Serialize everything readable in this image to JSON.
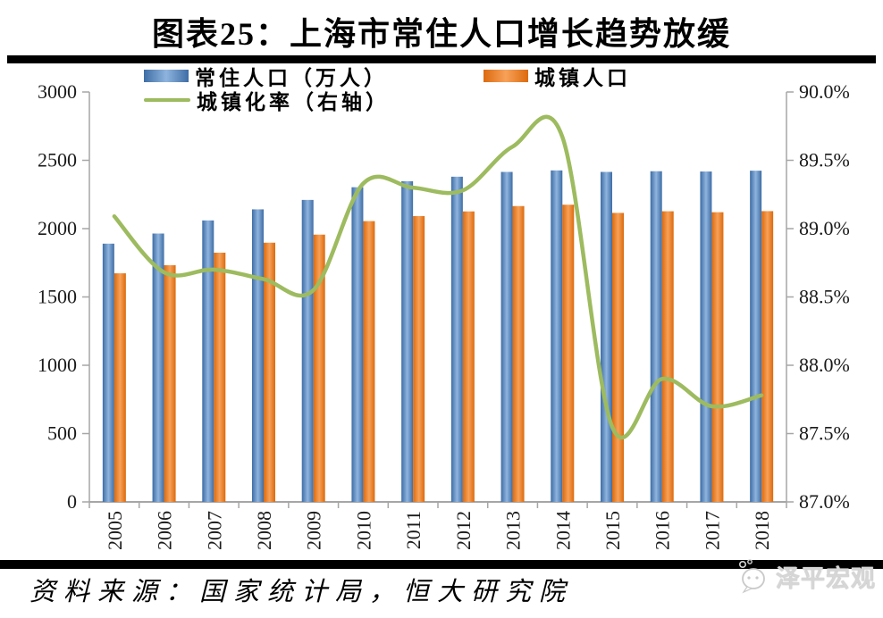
{
  "title": "图表25：上海市常住人口增长趋势放缓",
  "source": "资料来源：国家统计局，恒大研究院",
  "watermark": "泽平宏观",
  "legend": [
    {
      "label": "常住人口（万人）",
      "type": "bar",
      "color_key": "blue"
    },
    {
      "label": "城镇人口",
      "type": "bar",
      "color_key": "orange"
    },
    {
      "label": "城镇化率（右轴）",
      "type": "line",
      "color_key": "green"
    }
  ],
  "colors": {
    "bar_blue_edge": "#3E6DA5",
    "bar_blue_center": "#8FB4DE",
    "bar_orange_edge": "#DC6A0D",
    "bar_orange_center": "#F7A159",
    "line_green": "#9DBB5F",
    "axis_gray": "#A6A6A6",
    "text_black": "#1a1a1a",
    "divider_black": "#000000",
    "watermark_gray": "#d6d6d6"
  },
  "chart_data": {
    "type": "bar+line combo",
    "title": "图表25：上海市常住人口增长趋势放缓",
    "categories": [
      "2005",
      "2006",
      "2007",
      "2008",
      "2009",
      "2010",
      "2011",
      "2012",
      "2013",
      "2014",
      "2015",
      "2016",
      "2017",
      "2018"
    ],
    "series": [
      {
        "name": "常住人口（万人）",
        "type": "bar",
        "axis": "left",
        "values": [
          1890,
          1964,
          2060,
          2141,
          2210,
          2303,
          2347,
          2380,
          2415,
          2426,
          2415,
          2420,
          2418,
          2424
        ]
      },
      {
        "name": "城镇人口",
        "type": "bar",
        "axis": "left",
        "values": [
          1673,
          1732,
          1824,
          1897,
          1956,
          2055,
          2092,
          2126,
          2165,
          2175,
          2115,
          2127,
          2120,
          2128
        ]
      },
      {
        "name": "城镇化率（右轴）",
        "type": "line",
        "axis": "right",
        "values": [
          89.09,
          88.68,
          88.7,
          88.63,
          88.55,
          89.33,
          89.3,
          89.28,
          89.6,
          89.67,
          87.55,
          87.9,
          87.7,
          87.78
        ]
      }
    ],
    "left_axis": {
      "min": 0,
      "max": 3000,
      "step": 500,
      "ticks": [
        "3000",
        "2500",
        "2000",
        "1500",
        "1000",
        "500",
        "0"
      ]
    },
    "right_axis": {
      "min": 87.0,
      "max": 90.0,
      "step": 0.5,
      "ticks": [
        "90.0%",
        "89.5%",
        "89.0%",
        "88.5%",
        "88.0%",
        "87.5%",
        "87.0%"
      ]
    },
    "grid": false,
    "legend_position": "top-left, two rows"
  }
}
